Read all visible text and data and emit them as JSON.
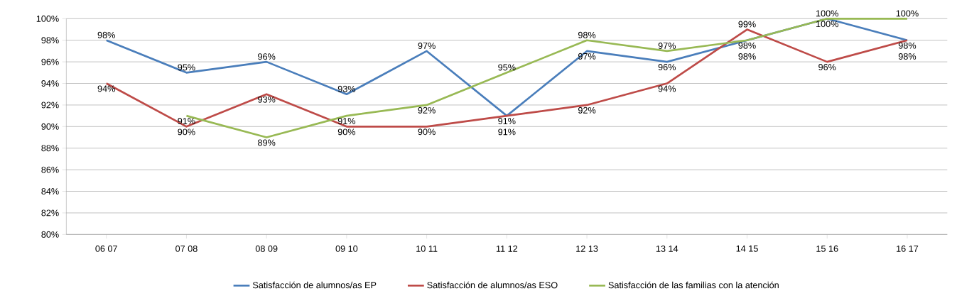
{
  "chart_data": {
    "type": "line",
    "categories": [
      "06 07",
      "07 08",
      "08 09",
      "09 10",
      "10 11",
      "11 12",
      "12 13",
      "13 14",
      "14 15",
      "15 16",
      "16 17"
    ],
    "series": [
      {
        "name": "Satisfacción de alumnos/as EP",
        "color": "#4a7ebb",
        "values": [
          98,
          95,
          96,
          93,
          97,
          91,
          97,
          96,
          98,
          100,
          98
        ],
        "value_labels": [
          "98%",
          "95%",
          "96%",
          "93%",
          "97%",
          "91%",
          "97%",
          "96%",
          "98%",
          "100%",
          "98%"
        ]
      },
      {
        "name": "Satisfacción de alumnos/as ESO",
        "color": "#be4b48",
        "values": [
          94,
          90,
          93,
          90,
          90,
          91,
          92,
          94,
          99,
          96,
          98
        ],
        "value_labels": [
          "94%",
          "90%",
          "93%",
          "90%",
          "90%",
          "91%",
          "92%",
          "94%",
          "99%",
          "96%",
          "98%"
        ]
      },
      {
        "name": "Satisfacción de las familias con la atención",
        "color": "#98b954",
        "values": [
          null,
          91,
          89,
          91,
          92,
          95,
          98,
          97,
          98,
          100,
          100
        ],
        "value_labels": [
          null,
          "91%",
          "89%",
          "91%",
          "92%",
          "95%",
          "98%",
          "97%",
          "98%",
          "100%",
          "100%"
        ]
      }
    ],
    "ylim": [
      80,
      100
    ],
    "yticks": [
      {
        "value": 80,
        "label": "80%"
      },
      {
        "value": 82,
        "label": "82%"
      },
      {
        "value": 84,
        "label": "84%"
      },
      {
        "value": 86,
        "label": "86%"
      },
      {
        "value": 88,
        "label": "88%"
      },
      {
        "value": 90,
        "label": "90%"
      },
      {
        "value": 92,
        "label": "92%"
      },
      {
        "value": 94,
        "label": "94%"
      },
      {
        "value": 96,
        "label": "96%"
      },
      {
        "value": 98,
        "label": "98%"
      },
      {
        "value": 100,
        "label": "100%"
      }
    ],
    "grid": "y",
    "legend": "bottom",
    "marker": "none",
    "line_style": "solid"
  }
}
